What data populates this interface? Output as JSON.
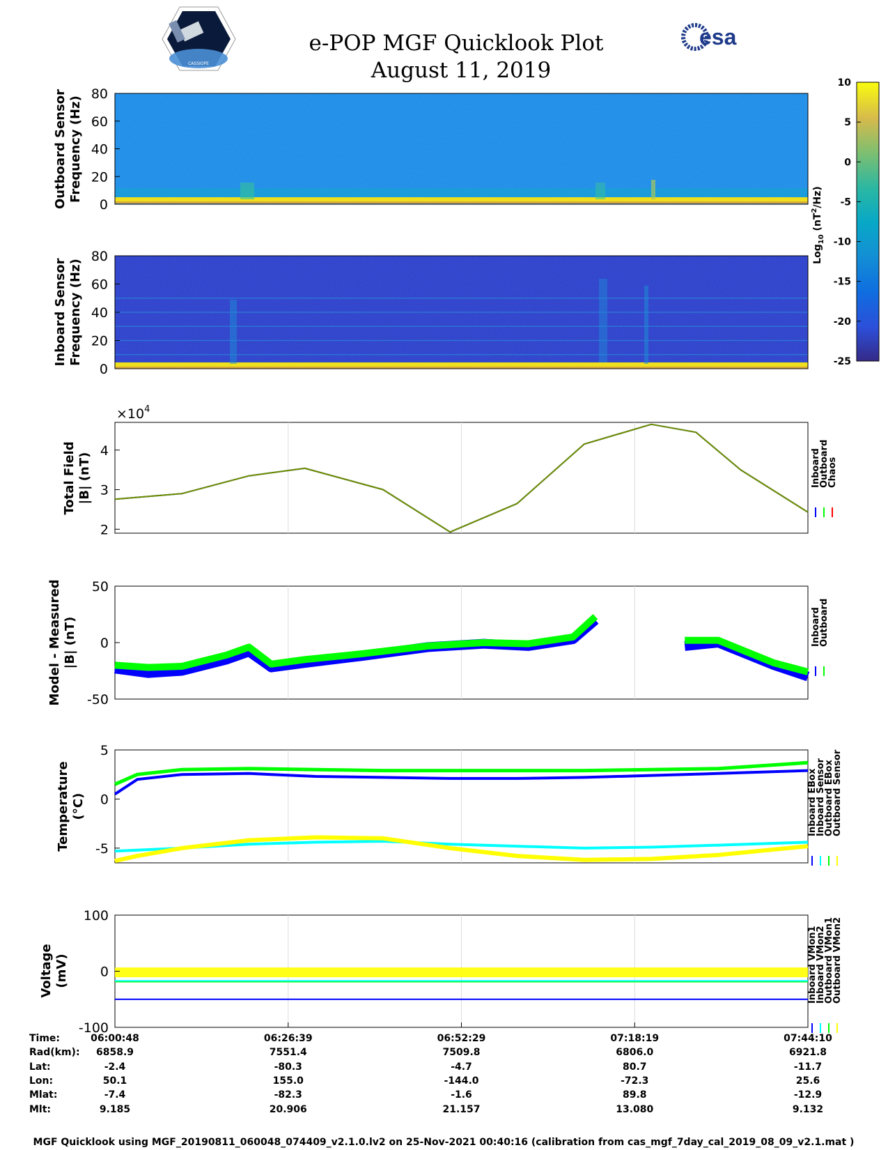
{
  "header": {
    "title_line1": "e-POP MGF Quicklook Plot",
    "title_line2": "August 11, 2019",
    "cassiope_logo_text": "CASSIOPE",
    "esa_logo_text": "esa"
  },
  "colorbar": {
    "ticks": [
      "10",
      "5",
      "0",
      "-5",
      "-10",
      "-15",
      "-20",
      "-25"
    ],
    "label": "Log10 (nT2/Hz)",
    "range": [
      -25,
      10
    ]
  },
  "panels": {
    "outboard_spec": {
      "ylabel1": "Outboard Sensor",
      "ylabel2": "Frequency (Hz)",
      "yticks": [
        "80",
        "60",
        "40",
        "20",
        "0"
      ]
    },
    "inboard_spec": {
      "ylabel1": "Inboard Sensor",
      "ylabel2": "Frequency (Hz)",
      "yticks": [
        "80",
        "60",
        "40",
        "20",
        "0"
      ]
    },
    "total_field": {
      "ylabel1": "Total Field",
      "ylabel2": "|B| (nT)",
      "exponent_base": "×10",
      "exponent_power": "4",
      "yticks": [
        "4",
        "3",
        "2"
      ],
      "legend": [
        "Inboard",
        "Outboard",
        "Chaos"
      ]
    },
    "model_measured": {
      "ylabel1": "Model - Measured",
      "ylabel2": "|B| (nT)",
      "yticks": [
        "50",
        "0",
        "-50"
      ],
      "legend": [
        "Inboard",
        "Outboard"
      ]
    },
    "temperature": {
      "ylabel1": "Temperature",
      "ylabel2": "(°C)",
      "yticks": [
        "5",
        "0",
        "-5"
      ],
      "legend": [
        "Inboard EBox",
        "Inboard Sensor",
        "Outboard EBox",
        "Outboard Sensor"
      ]
    },
    "voltage": {
      "ylabel1": "Voltage",
      "ylabel2": "(mV)",
      "yticks": [
        "100",
        "0",
        "-100"
      ],
      "legend": [
        "Inboard VMon1",
        "Inboard VMon2",
        "Outboard VMon1",
        "Outboard VMon2"
      ]
    }
  },
  "orbit_table": {
    "row_labels": [
      "Time:",
      "Rad(km):",
      "Lat:",
      "Lon:",
      "Mlat:",
      "Mlt:"
    ],
    "columns": [
      [
        "06:00:48",
        "6858.9",
        "-2.4",
        "50.1",
        "-7.4",
        "9.185"
      ],
      [
        "06:26:39",
        "7551.4",
        "-80.3",
        "155.0",
        "-82.3",
        "20.906"
      ],
      [
        "06:52:29",
        "7509.8",
        "-4.7",
        "-144.0",
        "-1.6",
        "21.157"
      ],
      [
        "07:18:19",
        "6806.0",
        "80.7",
        "-72.3",
        "89.8",
        "13.080"
      ],
      [
        "07:44:10",
        "6921.8",
        "-11.7",
        "25.6",
        "-12.9",
        "9.132"
      ]
    ]
  },
  "footer": "MGF Quicklook using MGF_20190811_060048_074409_v2.1.0.lv2 on 25-Nov-2021 00:40:16 (calibration from cas_mgf_7day_cal_2019_08_09_v2.1.mat )",
  "colors": {
    "inboard": "#0000ff",
    "outboard": "#00ff00",
    "chaos": "#ff0000",
    "inboard_sensor": "#00ffff",
    "outboard_sensor": "#ffff00"
  },
  "chart_data": [
    {
      "type": "heatmap",
      "title": "Outboard Sensor spectrogram",
      "ylabel": "Outboard Sensor Frequency (Hz)",
      "ylim": [
        0,
        80
      ],
      "zlim": [
        -25,
        10
      ],
      "background_level_log10": -12,
      "low_freq_band_log10": 8
    },
    {
      "type": "heatmap",
      "title": "Inboard Sensor spectrogram",
      "ylabel": "Inboard Sensor Frequency (Hz)",
      "ylim": [
        0,
        80
      ],
      "zlim": [
        -25,
        10
      ],
      "background_level_log10": -21,
      "harmonic_lines_hz": [
        10,
        20,
        30,
        40,
        50
      ]
    },
    {
      "type": "line",
      "title": "Total Field",
      "ylabel": "|B| (nT)",
      "xlim": [
        0,
        6202
      ],
      "ylim": [
        19000,
        47000
      ],
      "x": [
        0,
        600,
        1200,
        1700,
        2400,
        3000,
        3600,
        4200,
        4800,
        5200,
        5600,
        6202
      ],
      "series": [
        {
          "name": "Inboard",
          "values": [
            27600,
            29000,
            33500,
            35400,
            30000,
            19300,
            26500,
            41500,
            46500,
            44500,
            35000,
            24300
          ]
        },
        {
          "name": "Outboard",
          "values": [
            27600,
            29000,
            33500,
            35400,
            30000,
            19300,
            26500,
            41500,
            46500,
            44500,
            35000,
            24300
          ]
        },
        {
          "name": "Chaos",
          "values": [
            27600,
            29000,
            33500,
            35400,
            30000,
            19300,
            26500,
            41500,
            46500,
            44500,
            35000,
            24300
          ]
        }
      ]
    },
    {
      "type": "line",
      "title": "Model - Measured",
      "ylabel": "|B| (nT)",
      "xlim": [
        0,
        6202
      ],
      "ylim": [
        -50,
        50
      ],
      "x": [
        0,
        300,
        600,
        1000,
        1200,
        1400,
        1700,
        2200,
        2800,
        3300,
        3700,
        4100,
        4300,
        4400,
        5100,
        5400,
        5900,
        6202
      ],
      "gap": [
        4400,
        5100
      ],
      "series": [
        {
          "name": "Inboard",
          "values": [
            -23,
            -27,
            -25,
            -15,
            -8,
            -22,
            -18,
            -12,
            -4,
            -1,
            -3,
            3,
            20,
            null,
            -3,
            0,
            -20,
            -30
          ]
        },
        {
          "name": "Outboard",
          "values": [
            -20,
            -22,
            -21,
            -11,
            -4,
            -19,
            -15,
            -10,
            -3,
            0,
            -1,
            5,
            23,
            null,
            2,
            2,
            -18,
            -26
          ]
        }
      ]
    },
    {
      "type": "line",
      "title": "Temperature",
      "ylabel": "(°C)",
      "xlim": [
        0,
        6202
      ],
      "ylim": [
        -6.5,
        5
      ],
      "x": [
        0,
        200,
        600,
        1200,
        1800,
        2400,
        3000,
        3600,
        4200,
        4800,
        5400,
        6202
      ],
      "series": [
        {
          "name": "Inboard EBox",
          "values": [
            0.5,
            2.0,
            2.5,
            2.6,
            2.3,
            2.2,
            2.1,
            2.1,
            2.2,
            2.4,
            2.6,
            2.9
          ]
        },
        {
          "name": "Inboard Sensor",
          "values": [
            -5.3,
            -5.2,
            -5.0,
            -4.6,
            -4.4,
            -4.3,
            -4.6,
            -4.8,
            -5.0,
            -4.9,
            -4.7,
            -4.4
          ]
        },
        {
          "name": "Outboard EBox",
          "values": [
            1.5,
            2.5,
            3.0,
            3.1,
            3.0,
            2.9,
            2.9,
            2.9,
            2.9,
            3.0,
            3.1,
            3.7
          ]
        },
        {
          "name": "Outboard Sensor",
          "values": [
            -6.3,
            -5.8,
            -5.0,
            -4.2,
            -3.9,
            -4.0,
            -5.0,
            -5.8,
            -6.2,
            -6.1,
            -5.7,
            -4.8
          ]
        }
      ]
    },
    {
      "type": "line",
      "title": "Voltage",
      "ylabel": "(mV)",
      "xlim": [
        0,
        6202
      ],
      "ylim": [
        -100,
        100
      ],
      "x": [
        0,
        6202
      ],
      "series": [
        {
          "name": "Inboard VMon1",
          "values": [
            -50,
            -50
          ]
        },
        {
          "name": "Inboard VMon2",
          "values": [
            -17,
            -17
          ]
        },
        {
          "name": "Outboard VMon1",
          "values": [
            -18,
            -18
          ]
        },
        {
          "name": "Outboard VMon2",
          "values": [
            -2,
            -2
          ]
        }
      ]
    }
  ]
}
